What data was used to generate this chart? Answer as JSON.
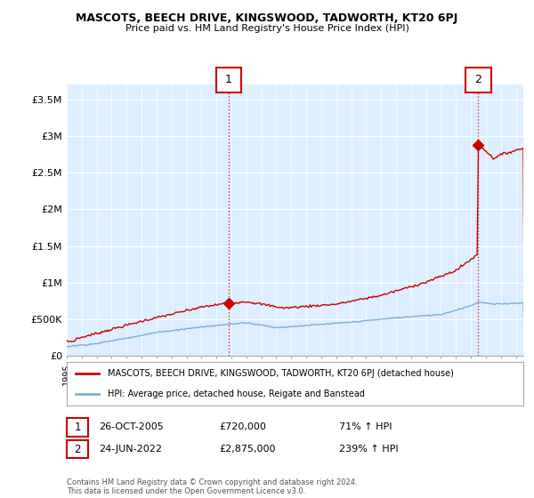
{
  "title": "MASCOTS, BEECH DRIVE, KINGSWOOD, TADWORTH, KT20 6PJ",
  "subtitle": "Price paid vs. HM Land Registry's House Price Index (HPI)",
  "legend_line1": "MASCOTS, BEECH DRIVE, KINGSWOOD, TADWORTH, KT20 6PJ (detached house)",
  "legend_line2": "HPI: Average price, detached house, Reigate and Banstead",
  "annotation1_date": "26-OCT-2005",
  "annotation1_price": "£720,000",
  "annotation1_hpi": "71% ↑ HPI",
  "annotation2_date": "24-JUN-2022",
  "annotation2_price": "£2,875,000",
  "annotation2_hpi": "239% ↑ HPI",
  "footer": "Contains HM Land Registry data © Crown copyright and database right 2024.\nThis data is licensed under the Open Government Licence v3.0.",
  "red_color": "#cc0000",
  "blue_color": "#7bafd4",
  "bg_color": "#ddeeff",
  "chart_bg": "#ddeeff",
  "outer_bg": "#ffffff",
  "grid_color": "#ffffff",
  "annotation_color": "#cc0000",
  "ylim": [
    0,
    3700000
  ],
  "yticks": [
    0,
    500000,
    1000000,
    1500000,
    2000000,
    2500000,
    3000000,
    3500000
  ],
  "ytick_labels": [
    "£0",
    "£500K",
    "£1M",
    "£1.5M",
    "£2M",
    "£2.5M",
    "£3M",
    "£3.5M"
  ],
  "sale1_x": 2005.82,
  "sale1_y": 720000,
  "sale2_x": 2022.48,
  "sale2_y": 2875000,
  "xmin": 1995.0,
  "xmax": 2025.5
}
